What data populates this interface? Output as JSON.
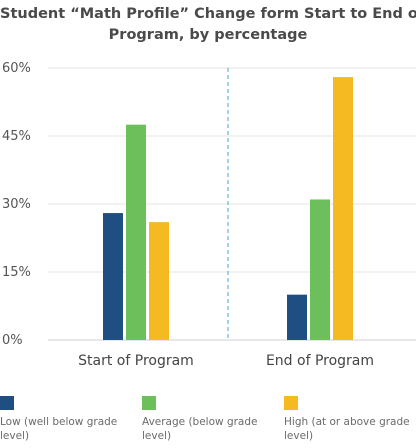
{
  "chart_data": {
    "type": "bar",
    "title_line1": "Student “Math Profile” Change form Start to End of",
    "title_line2": "Program, by percentage",
    "categories": [
      "Start of Program",
      "End of Program"
    ],
    "series": [
      {
        "name": "Low (well below grade level)",
        "color": "#1f4e82",
        "values": [
          28,
          10
        ]
      },
      {
        "name": "Average (below grade level)",
        "color": "#6cbf5b",
        "values": [
          47.5,
          31
        ]
      },
      {
        "name": "High (at or above grade level)",
        "color": "#f5b921",
        "values": [
          26,
          58
        ]
      }
    ],
    "yticks": [
      "0%",
      "15%",
      "30%",
      "45%",
      "60%"
    ],
    "ylim": [
      0,
      60
    ],
    "grid": true,
    "legend_position": "bottom"
  }
}
